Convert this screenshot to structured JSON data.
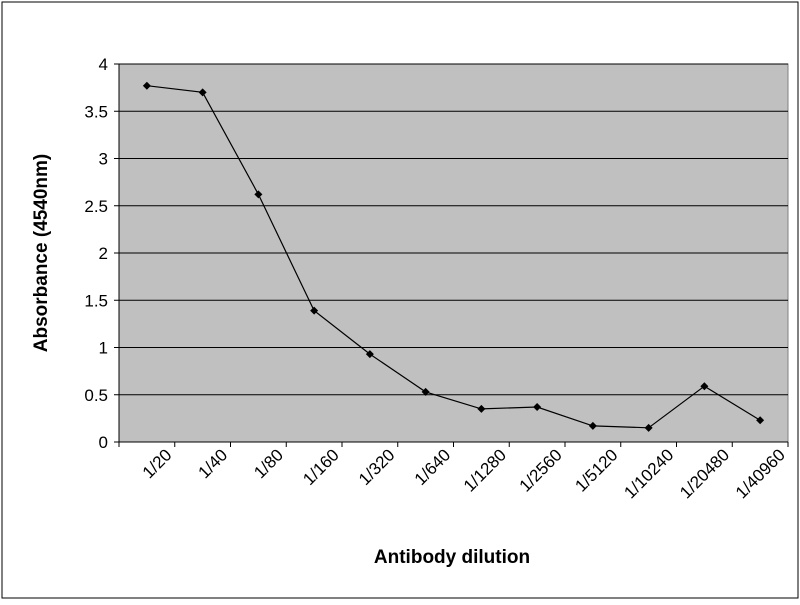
{
  "chart_data": {
    "type": "line",
    "title": "",
    "xlabel": "Antibody dilution",
    "ylabel": "Absorbance (4540nm)",
    "ylim": [
      0,
      4
    ],
    "yticks": [
      "0",
      "0.5",
      "1",
      "1.5",
      "2",
      "2.5",
      "3",
      "3.5",
      "4"
    ],
    "categories": [
      "1/20",
      "1/40",
      "1/80",
      "1/160",
      "1/320",
      "1/640",
      "1/1280",
      "1/2560",
      "1/5120",
      "1/10240",
      "1/20480",
      "1/40960"
    ],
    "series": [
      {
        "values": [
          3.77,
          3.7,
          2.62,
          1.39,
          0.93,
          0.53,
          0.35,
          0.37,
          0.17,
          0.15,
          0.59,
          0.23
        ]
      }
    ],
    "grid": true,
    "legend": "none",
    "colors": {
      "plot_background": "#c0c0c0",
      "gridline": "#000000",
      "line": "#000000",
      "marker": "#000000",
      "page_background": "#ffffff"
    }
  }
}
